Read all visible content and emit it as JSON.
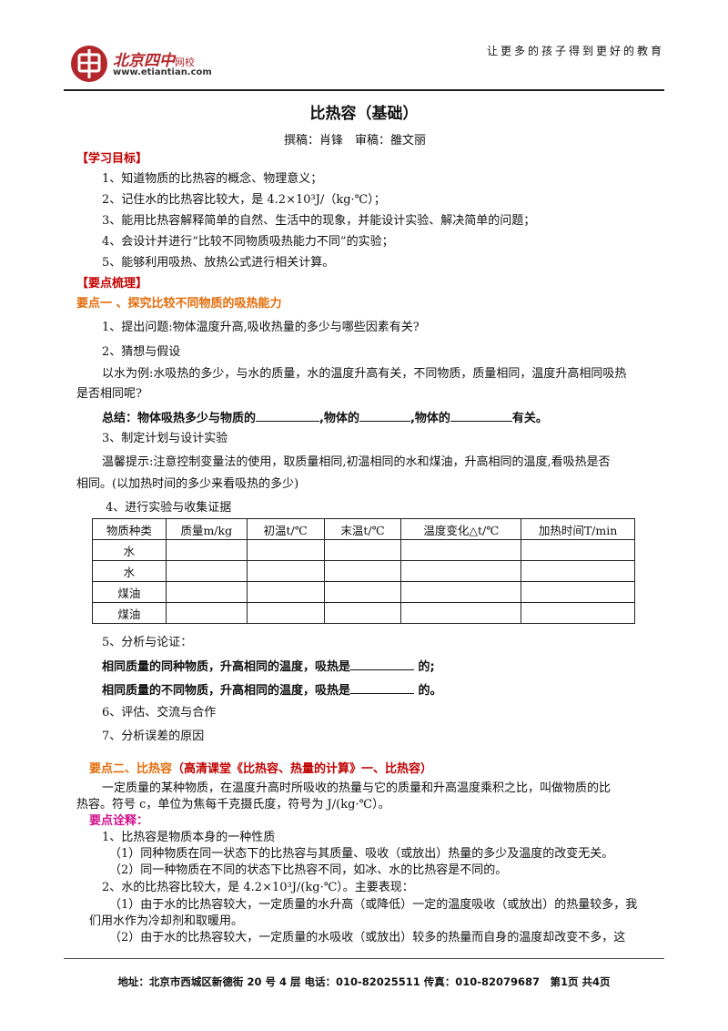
{
  "header": {
    "slogan": "让更多的孩子得到更好的教育",
    "logo_name": "北京四中",
    "logo_suffix": "网校",
    "logo_url": "www.etiantian.com"
  },
  "title": "比热容（基础）",
  "authors": "撰稿：肖锋　审稿：雒文丽",
  "goals": {
    "heading": "【学习目标】",
    "items": [
      "1、知道物质的比热容的概念、物理意义；",
      "2、记住水的比热容比较大，是 4.2×10³J/（kg·℃）；",
      "3、能用比热容解释简单的自然、生活中的现象，并能设计实验、解决简单的问题；",
      "4、会设计并进行“比较不同物质吸热能力不同”的实验；",
      "5、能够利用吸热、放热公式进行相关计算。"
    ]
  },
  "points_heading": "【要点梳理】",
  "point1": {
    "heading": "要点一 、探究比较不同物质的吸热能力",
    "q1": "1、提出问题:物体温度升高,吸收热量的多少与哪些因素有关?",
    "q2": "2、猜想与假设",
    "example_line1": "以水为例:水吸热的多少，与水的质量，水的温度升高有关，不同物质，质量相同，温度升高相同吸热",
    "example_line2": "是否相同呢?",
    "summary_a": "总结：物体吸热多少与物质的",
    "summary_b": ",物体的",
    "summary_c": ",物体的",
    "summary_d": "有关。",
    "q3": "3、制定计划与设计实验",
    "tip_line1": "温馨提示:注意控制变量法的使用，取质量相同,初温相同的水和煤油，升高相同的温度,看吸热是否",
    "tip_line2": "相同。(以加热时间的多少来看吸热的多少)",
    "q4": "4、进行实验与收集证据",
    "table_headers": [
      "物质种类",
      "质量m/kg",
      "初温t/℃",
      "末温t/℃",
      "温度变化△t/℃",
      "加热时间T/min"
    ],
    "table_rows": [
      "水",
      "水",
      "煤油",
      "煤油"
    ],
    "q5": "5、分析与论证：",
    "concl1_a": "相同质量的同种物质，升高相同的温度，吸热是",
    "concl1_b": "的;",
    "concl2_a": "相同质量的不同物质，升高相同的温度，吸热是",
    "concl2_b": "的。",
    "q6": "6、评估、交流与合作",
    "q7": "7、分析误差的原因"
  },
  "point2": {
    "heading_a": "要点二、比热容",
    "heading_b": "（高清课堂《比热容、热量的计算》一、比热容）",
    "def_line1": "一定质量的某种物质，在温度升高时所吸收的热量与它的质量和升高温度乘积之比，叫做物质的比",
    "def_line2": "热容。符号 c，单位为焦每千克摄氏度，符号为 J/(kg·℃）。",
    "notes_heading": "要点诠释：",
    "n1": "1、比热容是物质本身的一种性质",
    "n1a": "（1）同种物质在同一状态下的比热容与其质量、吸收（或放出）热量的多少及温度的改变无关。",
    "n1b": "（2）同一种物质在不同的状态下比热容不同，如冰、水的比热容是不同的。",
    "n2": "2、水的比热容比较大，是 4.2×10³J/(kg·℃）。主要表现：",
    "n2a_line1": "（1）由于水的比热容较大，一定质量的水升高（或降低）一定的温度吸收（或放出）的热量较多，我",
    "n2a_line2": "们用水作为冷却剂和取暖用。",
    "n2b_line1": "（2）由于水的比热容较大，一定质量的水吸收（或放出）较多的热量而自身的温度却改变不多，这"
  },
  "footer": "地址：北京市西城区新德街 20 号 4 层  电话：010-82025511  传真：010-82079687　第1页  共4页"
}
